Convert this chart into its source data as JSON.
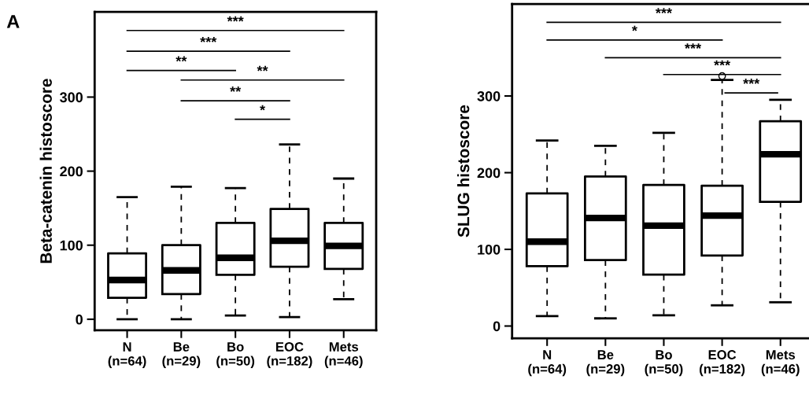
{
  "chart_data": [
    {
      "type": "box",
      "ylabel": "Beta-catenin histoscore",
      "categories": [
        "N\n(n=64)",
        "Be\n(n=29)",
        "Bo\n(n=50)",
        "EOC\n(n=182)",
        "Mets\n(n=46)"
      ],
      "boxes": [
        {
          "low": 0,
          "q1": 29,
          "median": 53,
          "q3": 89,
          "high": 165
        },
        {
          "low": 0,
          "q1": 34,
          "median": 66,
          "q3": 100,
          "high": 179
        },
        {
          "low": 5,
          "q1": 60,
          "median": 83,
          "q3": 130,
          "high": 177
        },
        {
          "low": 3,
          "q1": 71,
          "median": 106,
          "q3": 149,
          "high": 236
        },
        {
          "low": 27,
          "q1": 68,
          "median": 99,
          "q3": 130,
          "high": 190
        }
      ],
      "ylim": [
        -15,
        415
      ],
      "yticks": [
        0,
        100,
        200,
        300
      ],
      "line_style": "dashed",
      "annotations": [
        "A",
        "***",
        "***",
        "**",
        "**",
        "**",
        "*"
      ]
    },
    {
      "type": "box",
      "ylabel": "SLUG histoscore",
      "categories": [
        "N\n(n=64)",
        "Be\n(n=29)",
        "Bo\n(n=50)",
        "EOC\n(n=182)",
        "Mets\n(n=46)"
      ],
      "boxes": [
        {
          "low": 13,
          "q1": 78,
          "median": 110,
          "q3": 173,
          "high": 242
        },
        {
          "low": 10,
          "q1": 86,
          "median": 141,
          "q3": 195,
          "high": 235
        },
        {
          "low": 14,
          "q1": 67,
          "median": 131,
          "q3": 184,
          "high": 252
        },
        {
          "low": 27,
          "q1": 92,
          "median": 144,
          "q3": 183,
          "high": 321,
          "outliers": [
            326
          ]
        },
        {
          "low": 31,
          "q1": 162,
          "median": 224,
          "q3": 267,
          "high": 295
        }
      ],
      "ylim": [
        -16,
        420
      ],
      "yticks": [
        0,
        100,
        200,
        300
      ],
      "line_style": "dashed",
      "annotations": [
        "***",
        "*",
        "***",
        "***",
        "***"
      ]
    }
  ]
}
